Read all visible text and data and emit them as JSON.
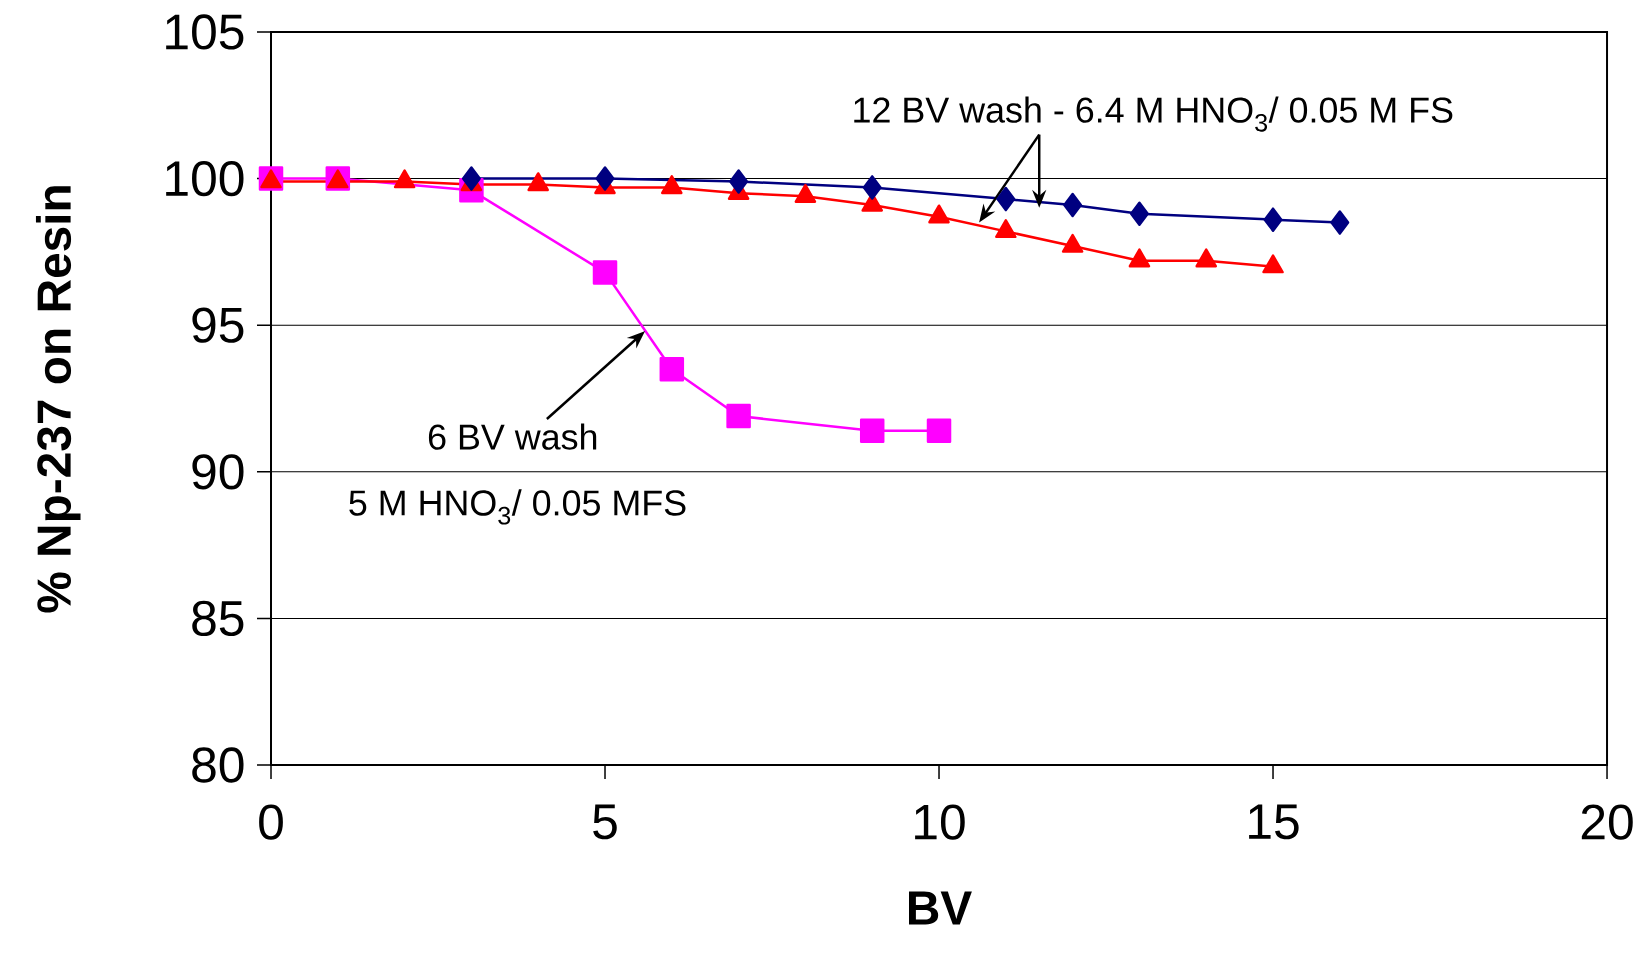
{
  "chart_data": {
    "type": "line",
    "xlabel": "BV",
    "ylabel": "% Np-237 on Resin",
    "xlim": [
      0,
      20
    ],
    "xticks": [
      0,
      5,
      10,
      15,
      20
    ],
    "ylim": [
      80,
      105
    ],
    "yticks": [
      80,
      85,
      90,
      95,
      100,
      105
    ],
    "grid": "y",
    "line_style": "solid",
    "series": [
      {
        "color": "#ff00ff",
        "marker": "square",
        "x": [
          0,
          1,
          3,
          5,
          6,
          7,
          9,
          10
        ],
        "values": [
          100,
          100,
          99.6,
          96.8,
          93.5,
          91.9,
          91.4,
          91.4
        ]
      },
      {
        "color": "#ff0000",
        "marker": "triangle",
        "x": [
          0,
          1,
          2,
          3,
          4,
          5,
          6,
          7,
          8,
          9,
          10,
          11,
          12,
          13,
          14,
          15
        ],
        "values": [
          99.9,
          99.9,
          99.9,
          99.8,
          99.8,
          99.7,
          99.7,
          99.5,
          99.4,
          99.1,
          98.7,
          98.2,
          97.7,
          97.2,
          97.2,
          97.0
        ]
      },
      {
        "color": "#000080",
        "marker": "diamond",
        "x": [
          3,
          5,
          7,
          9,
          11,
          12,
          13,
          15,
          16
        ],
        "values": [
          100,
          100,
          99.9,
          99.7,
          99.3,
          99.1,
          98.8,
          98.6,
          98.5
        ]
      }
    ],
    "annotations": [
      {
        "text": "12 BV wash - 6.4 M HNO$_{3}$/ 0.05 M FS",
        "x": 11.5,
        "y": 99.0
      },
      {
        "text": "6 BV wash",
        "x": 5.6,
        "y": 94.8
      },
      "5 M HNO$_{3}$/ 0.05 MFS"
    ]
  }
}
